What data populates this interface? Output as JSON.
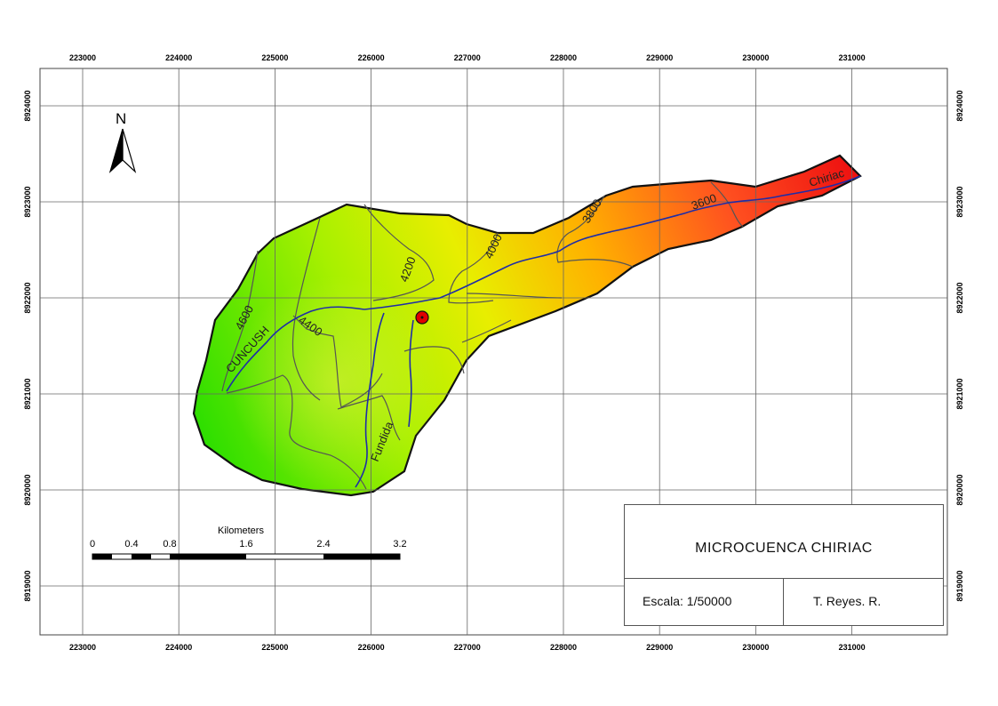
{
  "map": {
    "x_ticks": [
      "223000",
      "224000",
      "225000",
      "226000",
      "227000",
      "228000",
      "229000",
      "230000",
      "231000"
    ],
    "y_ticks": [
      "8924000",
      "8923000",
      "8922000",
      "8921000",
      "8920000",
      "8919000"
    ],
    "north_label": "N",
    "contour_labels": [
      "4600",
      "4400",
      "4200",
      "4000",
      "3800",
      "3600"
    ],
    "river_labels": [
      "CUNCUSH",
      "Fundida",
      "Chiriac"
    ],
    "elevation_ramp": [
      "#22dd00",
      "#a8f000",
      "#e8ee00",
      "#ffb000",
      "#ff5020",
      "#ee1010"
    ],
    "outlet_color": "#e00000"
  },
  "scale_bar": {
    "units": "Kilometers",
    "labels": [
      "0",
      "0.4",
      "0.8",
      "1.6",
      "2.4",
      "3.2"
    ]
  },
  "title_block": {
    "title": "MICROCUENCA CHIRIAC",
    "scale": "Escala: 1/50000",
    "author": "T. Reyes. R."
  }
}
